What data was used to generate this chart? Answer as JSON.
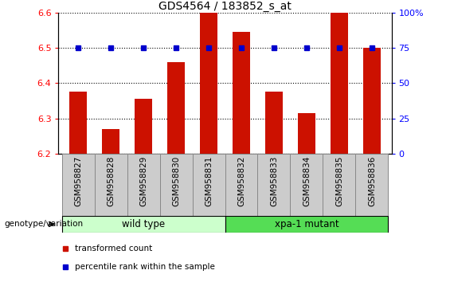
{
  "title": "GDS4564 / 183852_s_at",
  "samples": [
    "GSM958827",
    "GSM958828",
    "GSM958829",
    "GSM958830",
    "GSM958831",
    "GSM958832",
    "GSM958833",
    "GSM958834",
    "GSM958835",
    "GSM958836"
  ],
  "transformed_count": [
    6.375,
    6.27,
    6.355,
    6.46,
    6.6,
    6.545,
    6.375,
    6.315,
    6.6,
    6.5
  ],
  "percentile_rank": [
    75,
    75,
    75,
    75,
    75,
    75,
    75,
    75,
    75,
    75
  ],
  "ylim_left": [
    6.2,
    6.6
  ],
  "ylim_right": [
    0,
    100
  ],
  "yticks_left": [
    6.2,
    6.3,
    6.4,
    6.5,
    6.6
  ],
  "yticks_right": [
    0,
    25,
    50,
    75,
    100
  ],
  "ytick_right_labels": [
    "0",
    "25",
    "50",
    "75",
    "100%"
  ],
  "bar_color": "#cc1100",
  "dot_color": "#0000cc",
  "groups": [
    {
      "label": "wild type",
      "indices": [
        0,
        1,
        2,
        3,
        4
      ],
      "color": "#ccffcc"
    },
    {
      "label": "xpa-1 mutant",
      "indices": [
        5,
        6,
        7,
        8,
        9
      ],
      "color": "#55dd55"
    }
  ],
  "group_label": "genotype/variation",
  "legend_items": [
    {
      "label": "transformed count",
      "color": "#cc1100"
    },
    {
      "label": "percentile rank within the sample",
      "color": "#0000cc"
    }
  ],
  "bar_width": 0.55,
  "tick_label_fontsize": 7.5,
  "title_fontsize": 10,
  "label_box_color": "#cccccc",
  "label_box_edge": "#888888"
}
